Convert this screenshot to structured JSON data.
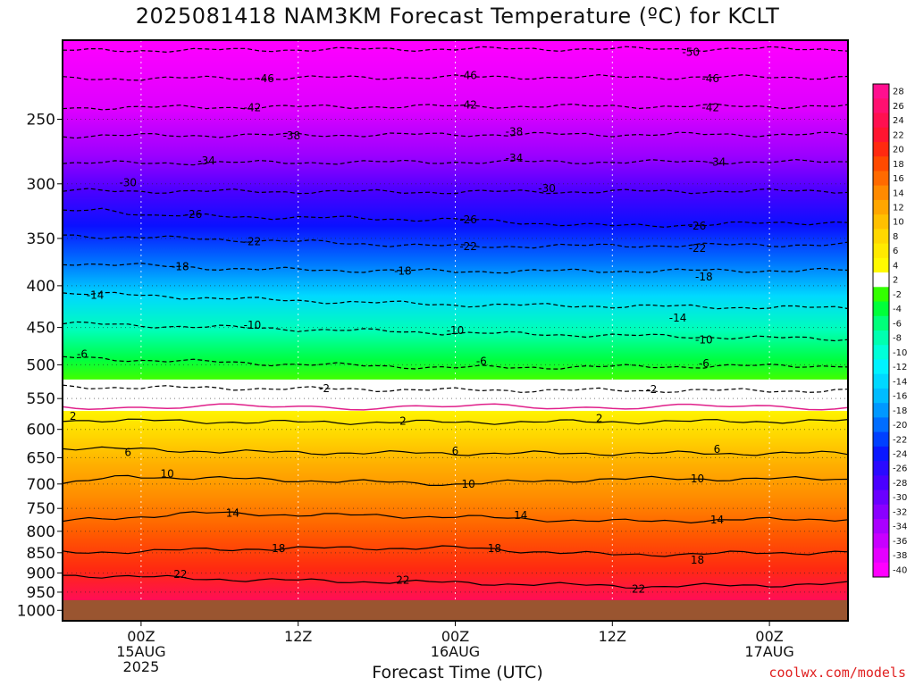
{
  "title": "2025081418 NAM3KM Forecast Temperature (ºC) for KCLT",
  "xlabel": "Forecast Time (UTC)",
  "credit": "coolwx.com/models",
  "chart_data": {
    "type": "heatmap",
    "title": "2025081418 NAM3KM Forecast Temperature (ºC) for KCLT",
    "xlabel": "Forecast Time (UTC)",
    "ylabel": "",
    "init_time": "2025-08-14 18Z",
    "x_range_hours": [
      0,
      60
    ],
    "y_axis": "pressure (mb)",
    "y_scale": "log",
    "ylim": [
      1030,
      200
    ],
    "yticks": [
      250,
      300,
      350,
      400,
      450,
      500,
      550,
      600,
      650,
      700,
      750,
      800,
      850,
      900,
      950,
      1000
    ],
    "xticks": [
      {
        "hour": 6,
        "lines": [
          "00Z",
          "15AUG",
          "2025"
        ]
      },
      {
        "hour": 18,
        "lines": [
          "12Z"
        ]
      },
      {
        "hour": 30,
        "lines": [
          "00Z",
          "16AUG"
        ]
      },
      {
        "hour": 42,
        "lines": [
          "12Z"
        ]
      },
      {
        "hour": 54,
        "lines": [
          "00Z",
          "17AUG"
        ]
      }
    ],
    "contour_levels": [
      -50,
      -46,
      -42,
      -38,
      -34,
      -30,
      -26,
      -22,
      -18,
      -14,
      -10,
      -6,
      -2,
      2,
      6,
      10,
      14,
      18,
      22
    ],
    "freezing_level_mb": 563,
    "ground": "below ~985 mb",
    "grid": true,
    "series": [
      {
        "level": -50,
        "points": [
          [
            0,
            206
          ],
          [
            30,
            205
          ],
          [
            60,
            205
          ]
        ]
      },
      {
        "level": -46,
        "points": [
          [
            0,
            223
          ],
          [
            30,
            222
          ],
          [
            60,
            222
          ]
        ]
      },
      {
        "level": -42,
        "points": [
          [
            0,
            242
          ],
          [
            30,
            241
          ],
          [
            60,
            241
          ]
        ]
      },
      {
        "level": -38,
        "points": [
          [
            0,
            262
          ],
          [
            30,
            261
          ],
          [
            60,
            261
          ]
        ]
      },
      {
        "level": -34,
        "points": [
          [
            0,
            283
          ],
          [
            30,
            282
          ],
          [
            60,
            282
          ]
        ]
      },
      {
        "level": -30,
        "points": [
          [
            0,
            306
          ],
          [
            30,
            307
          ],
          [
            60,
            306
          ]
        ]
      },
      {
        "level": -26,
        "points": [
          [
            0,
            325
          ],
          [
            3,
            322
          ],
          [
            7,
            328
          ],
          [
            30,
            332
          ],
          [
            42,
            338
          ],
          [
            60,
            334
          ]
        ]
      },
      {
        "level": -22,
        "points": [
          [
            0,
            347
          ],
          [
            15,
            352
          ],
          [
            30,
            358
          ],
          [
            60,
            356
          ]
        ]
      },
      {
        "level": -18,
        "points": [
          [
            0,
            375
          ],
          [
            15,
            382
          ],
          [
            30,
            384
          ],
          [
            60,
            383
          ]
        ]
      },
      {
        "level": -14,
        "points": [
          [
            0,
            408
          ],
          [
            15,
            416
          ],
          [
            30,
            422
          ],
          [
            60,
            426
          ]
        ]
      },
      {
        "level": -10,
        "points": [
          [
            0,
            445
          ],
          [
            15,
            451
          ],
          [
            30,
            457
          ],
          [
            60,
            465
          ]
        ]
      },
      {
        "level": -6,
        "points": [
          [
            0,
            490
          ],
          [
            15,
            498
          ],
          [
            30,
            504
          ],
          [
            60,
            501
          ]
        ]
      },
      {
        "level": -2,
        "points": [
          [
            0,
            532
          ],
          [
            30,
            537
          ],
          [
            60,
            538
          ]
        ]
      },
      {
        "level": 2,
        "points": [
          [
            0,
            584
          ],
          [
            15,
            588
          ],
          [
            30,
            588
          ],
          [
            60,
            586
          ]
        ]
      },
      {
        "level": 6,
        "points": [
          [
            0,
            632
          ],
          [
            15,
            640
          ],
          [
            30,
            642
          ],
          [
            60,
            642
          ]
        ]
      },
      {
        "level": 10,
        "points": [
          [
            0,
            700
          ],
          [
            5,
            685
          ],
          [
            30,
            700
          ],
          [
            42,
            690
          ],
          [
            60,
            690
          ]
        ]
      },
      {
        "level": 14,
        "points": [
          [
            0,
            778
          ],
          [
            10,
            760
          ],
          [
            30,
            768
          ],
          [
            42,
            778
          ],
          [
            60,
            772
          ]
        ]
      },
      {
        "level": 18,
        "points": [
          [
            0,
            850
          ],
          [
            15,
            840
          ],
          [
            30,
            838
          ],
          [
            42,
            855
          ],
          [
            60,
            848
          ]
        ]
      },
      {
        "level": 22,
        "points": [
          [
            0,
            905
          ],
          [
            15,
            918
          ],
          [
            30,
            925
          ],
          [
            45,
            935
          ],
          [
            60,
            928
          ]
        ]
      }
    ],
    "contour_labels": [
      {
        "text": "-50",
        "hour": 48,
        "mb": 207
      },
      {
        "text": "-46",
        "hour": 15.5,
        "mb": 223
      },
      {
        "text": "-46",
        "hour": 31,
        "mb": 221
      },
      {
        "text": "-46",
        "hour": 49.5,
        "mb": 223
      },
      {
        "text": "-42",
        "hour": 14.5,
        "mb": 242
      },
      {
        "text": "-42",
        "hour": 31,
        "mb": 240
      },
      {
        "text": "-42",
        "hour": 49.5,
        "mb": 242
      },
      {
        "text": "-38",
        "hour": 17.5,
        "mb": 262
      },
      {
        "text": "-38",
        "hour": 34.5,
        "mb": 259
      },
      {
        "text": "-34",
        "hour": 11,
        "mb": 281
      },
      {
        "text": "-34",
        "hour": 34.5,
        "mb": 279
      },
      {
        "text": "-34",
        "hour": 50,
        "mb": 282
      },
      {
        "text": "-30",
        "hour": 5,
        "mb": 299
      },
      {
        "text": "-30",
        "hour": 37,
        "mb": 304
      },
      {
        "text": "-26",
        "hour": 10,
        "mb": 327
      },
      {
        "text": "-26",
        "hour": 31,
        "mb": 332
      },
      {
        "text": "-26",
        "hour": 48.5,
        "mb": 338
      },
      {
        "text": "-22",
        "hour": 14.5,
        "mb": 353
      },
      {
        "text": "-22",
        "hour": 31,
        "mb": 358
      },
      {
        "text": "-22",
        "hour": 48.5,
        "mb": 360
      },
      {
        "text": "-18",
        "hour": 9,
        "mb": 379
      },
      {
        "text": "-18",
        "hour": 26,
        "mb": 384
      },
      {
        "text": "-18",
        "hour": 49,
        "mb": 390
      },
      {
        "text": "-14",
        "hour": 2.5,
        "mb": 411
      },
      {
        "text": "-14",
        "hour": 47,
        "mb": 438
      },
      {
        "text": "-10",
        "hour": 14.5,
        "mb": 447
      },
      {
        "text": "-10",
        "hour": 30,
        "mb": 454
      },
      {
        "text": "-10",
        "hour": 49,
        "mb": 466
      },
      {
        "text": "-6",
        "hour": 1.5,
        "mb": 485
      },
      {
        "text": "-6",
        "hour": 32,
        "mb": 495
      },
      {
        "text": "-6",
        "hour": 49,
        "mb": 498
      },
      {
        "text": "-2",
        "hour": 20,
        "mb": 535
      },
      {
        "text": "-2",
        "hour": 45,
        "mb": 536
      },
      {
        "text": "2",
        "hour": 0.8,
        "mb": 578
      },
      {
        "text": "2",
        "hour": 26,
        "mb": 586
      },
      {
        "text": "2",
        "hour": 41,
        "mb": 582
      },
      {
        "text": "6",
        "hour": 5,
        "mb": 640
      },
      {
        "text": "6",
        "hour": 30,
        "mb": 638
      },
      {
        "text": "6",
        "hour": 50,
        "mb": 635
      },
      {
        "text": "10",
        "hour": 8,
        "mb": 680
      },
      {
        "text": "10",
        "hour": 31,
        "mb": 700
      },
      {
        "text": "10",
        "hour": 48.5,
        "mb": 690
      },
      {
        "text": "14",
        "hour": 13,
        "mb": 760
      },
      {
        "text": "14",
        "hour": 35,
        "mb": 765
      },
      {
        "text": "14",
        "hour": 50,
        "mb": 775
      },
      {
        "text": "18",
        "hour": 16.5,
        "mb": 840
      },
      {
        "text": "18",
        "hour": 33,
        "mb": 840
      },
      {
        "text": "18",
        "hour": 48.5,
        "mb": 868
      },
      {
        "text": "22",
        "hour": 9,
        "mb": 903
      },
      {
        "text": "22",
        "hour": 26,
        "mb": 918
      },
      {
        "text": "22",
        "hour": 44,
        "mb": 942
      }
    ],
    "colorbar": {
      "labels": [
        "28",
        "26",
        "24",
        "22",
        "20",
        "18",
        "16",
        "14",
        "12",
        "10",
        "8",
        "6",
        "4",
        "2",
        "-2",
        "-4",
        "-6",
        "-8",
        "-10",
        "-12",
        "-14",
        "-16",
        "-18",
        "-20",
        "-22",
        "-24",
        "-26",
        "-28",
        "-30",
        "-32",
        "-34",
        "-36",
        "-38",
        "-40"
      ],
      "colors": [
        "#ff0f8f",
        "#ff1070",
        "#ff1050",
        "#ff1530",
        "#ff2a10",
        "#ff4a00",
        "#ff6a00",
        "#ff8a00",
        "#ffa600",
        "#ffc000",
        "#ffd800",
        "#ffea00",
        "#fffa00",
        "#ffffff",
        "#33ff00",
        "#00ff3a",
        "#00ff7a",
        "#00ffb0",
        "#00ffd8",
        "#00f2ff",
        "#00d8ff",
        "#00bcff",
        "#0098ff",
        "#006dff",
        "#0040ff",
        "#0a18ff",
        "#2a0aff",
        "#4a00ff",
        "#6a00ff",
        "#8a00ff",
        "#aa00ff",
        "#c800ff",
        "#e400ff",
        "#ff00ff"
      ]
    }
  }
}
